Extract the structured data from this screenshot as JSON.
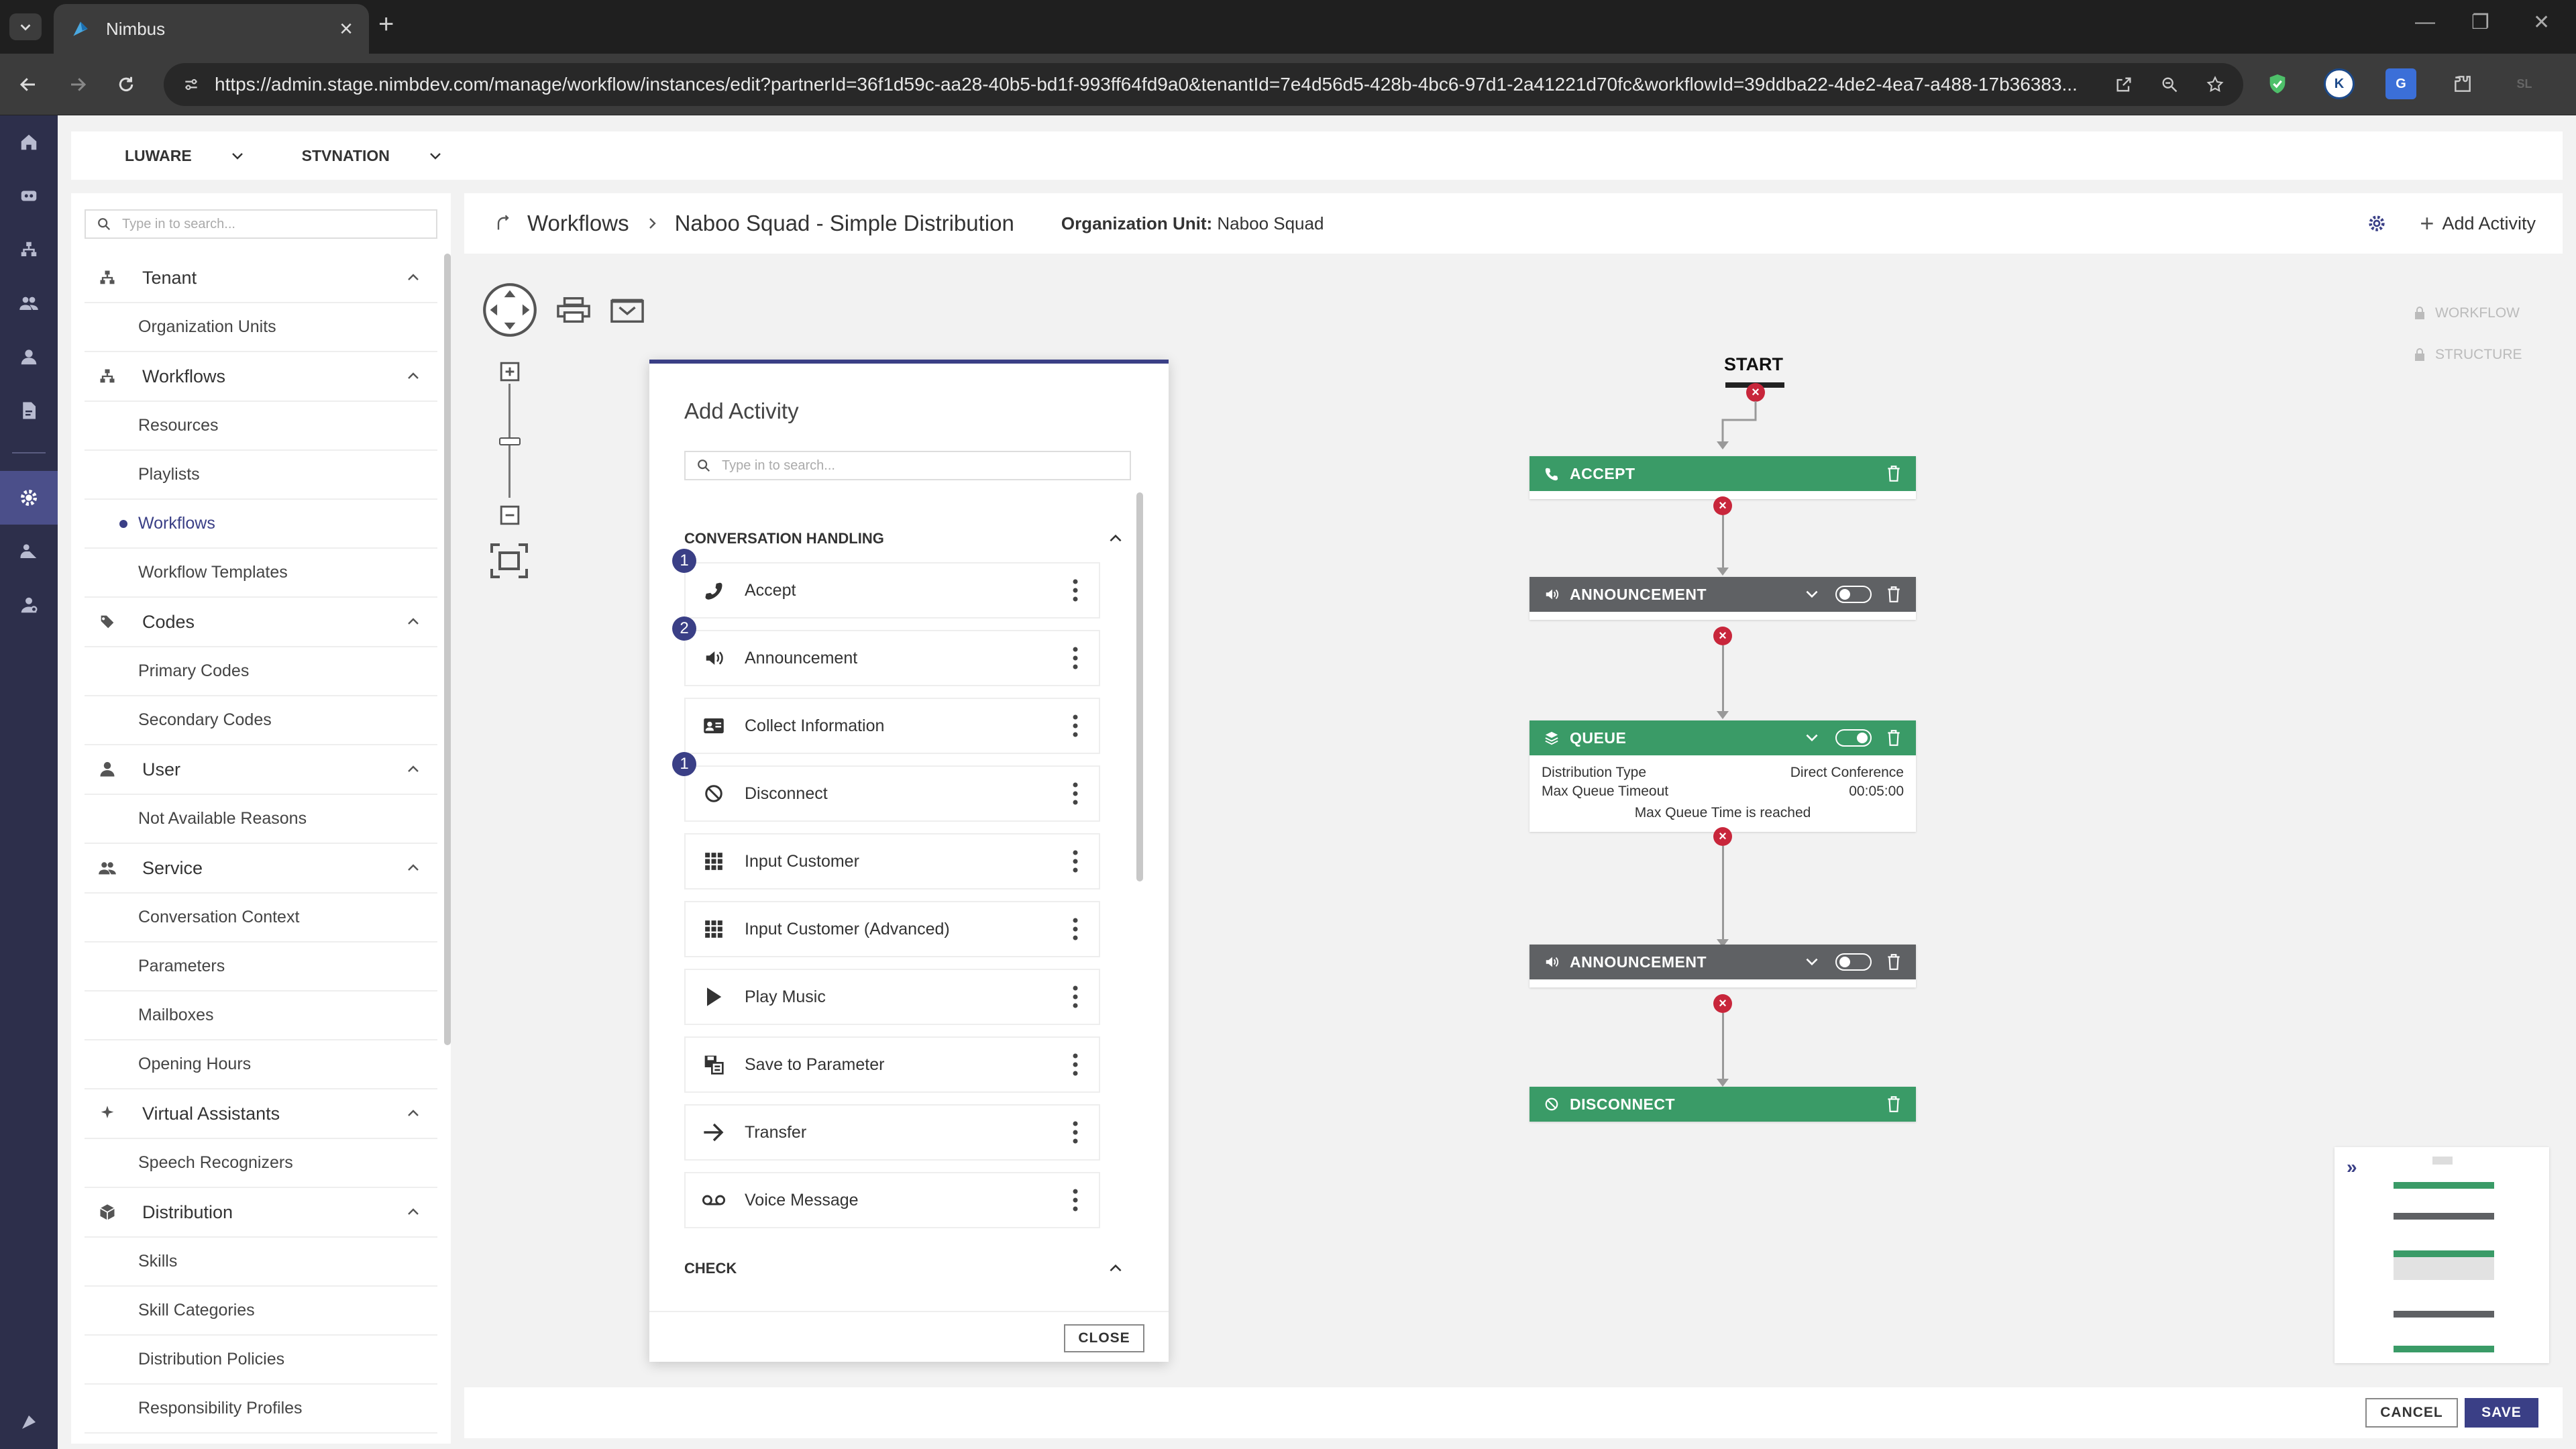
{
  "browser": {
    "tab_title": "Nimbus",
    "url": "https://admin.stage.nimbdev.com/manage/workflow/instances/edit?partnerId=36f1d59c-aa28-40b5-bd1f-993ff64fd9a0&tenantId=7e4d56d5-428b-4bc6-97d1-2a41221d70fc&workflowId=39ddba22-4de2-4ea7-a488-17b36383..."
  },
  "header": {
    "partner": "LUWARE",
    "tenant": "STVNATION"
  },
  "sidebar": {
    "search_placeholder": "Type in to search...",
    "sections": [
      {
        "label": "Tenant",
        "items": [
          "Organization Units"
        ]
      },
      {
        "label": "Workflows",
        "items": [
          "Resources",
          "Playlists",
          "Workflows",
          "Workflow Templates"
        ]
      },
      {
        "label": "Codes",
        "items": [
          "Primary Codes",
          "Secondary Codes"
        ]
      },
      {
        "label": "User",
        "items": [
          "Not Available Reasons"
        ]
      },
      {
        "label": "Service",
        "items": [
          "Conversation Context",
          "Parameters",
          "Mailboxes",
          "Opening Hours"
        ]
      },
      {
        "label": "Virtual Assistants",
        "items": [
          "Speech Recognizers"
        ]
      },
      {
        "label": "Distribution",
        "items": [
          "Skills",
          "Skill Categories",
          "Distribution Policies",
          "Responsibility Profiles"
        ]
      }
    ],
    "active_item": "Workflows"
  },
  "content_header": {
    "breadcrumb_root": "Workflows",
    "breadcrumb_current": "Naboo Squad - Simple Distribution",
    "org_unit_label": "Organization Unit:",
    "org_unit_value": "Naboo Squad",
    "add_activity_label": "Add Activity"
  },
  "locks": {
    "workflow": "WORKFLOW",
    "structure": "STRUCTURE"
  },
  "add_activity_panel": {
    "title": "Add Activity",
    "search_placeholder": "Type in to search...",
    "group1": "CONVERSATION HANDLING",
    "group2": "CHECK",
    "activities": [
      {
        "label": "Accept",
        "icon": "phone-icon",
        "badge": "1"
      },
      {
        "label": "Announcement",
        "icon": "speaker-icon",
        "badge": "2"
      },
      {
        "label": "Collect Information",
        "icon": "id-card-icon",
        "badge": ""
      },
      {
        "label": "Disconnect",
        "icon": "ban-icon",
        "badge": "1"
      },
      {
        "label": "Input Customer",
        "icon": "keypad-icon",
        "badge": ""
      },
      {
        "label": "Input Customer (Advanced)",
        "icon": "keypad-icon",
        "badge": ""
      },
      {
        "label": "Play Music",
        "icon": "play-icon",
        "badge": ""
      },
      {
        "label": "Save to Parameter",
        "icon": "save-param-icon",
        "badge": ""
      },
      {
        "label": "Transfer",
        "icon": "arrow-right-icon",
        "badge": ""
      },
      {
        "label": "Voice Message",
        "icon": "voicemail-icon",
        "badge": ""
      }
    ],
    "close_label": "CLOSE"
  },
  "flow": {
    "start_label": "START",
    "nodes": {
      "accept": "ACCEPT",
      "announcement1": "ANNOUNCEMENT",
      "queue": "QUEUE",
      "announcement2": "ANNOUNCEMENT",
      "disconnect": "DISCONNECT"
    },
    "queue_details": {
      "distribution_type_label": "Distribution Type",
      "distribution_type_value": "Direct Conference",
      "max_timeout_label": "Max Queue Timeout",
      "max_timeout_value": "00:05:00",
      "exit_label": "Max Queue Time is reached"
    }
  },
  "footer": {
    "cancel_label": "CANCEL",
    "save_label": "SAVE"
  },
  "colors": {
    "accent": "#3a3f86",
    "green": "#3a9b67",
    "gray_node": "#5f6164",
    "error": "#c8263b",
    "rail": "#2d2f4b"
  }
}
